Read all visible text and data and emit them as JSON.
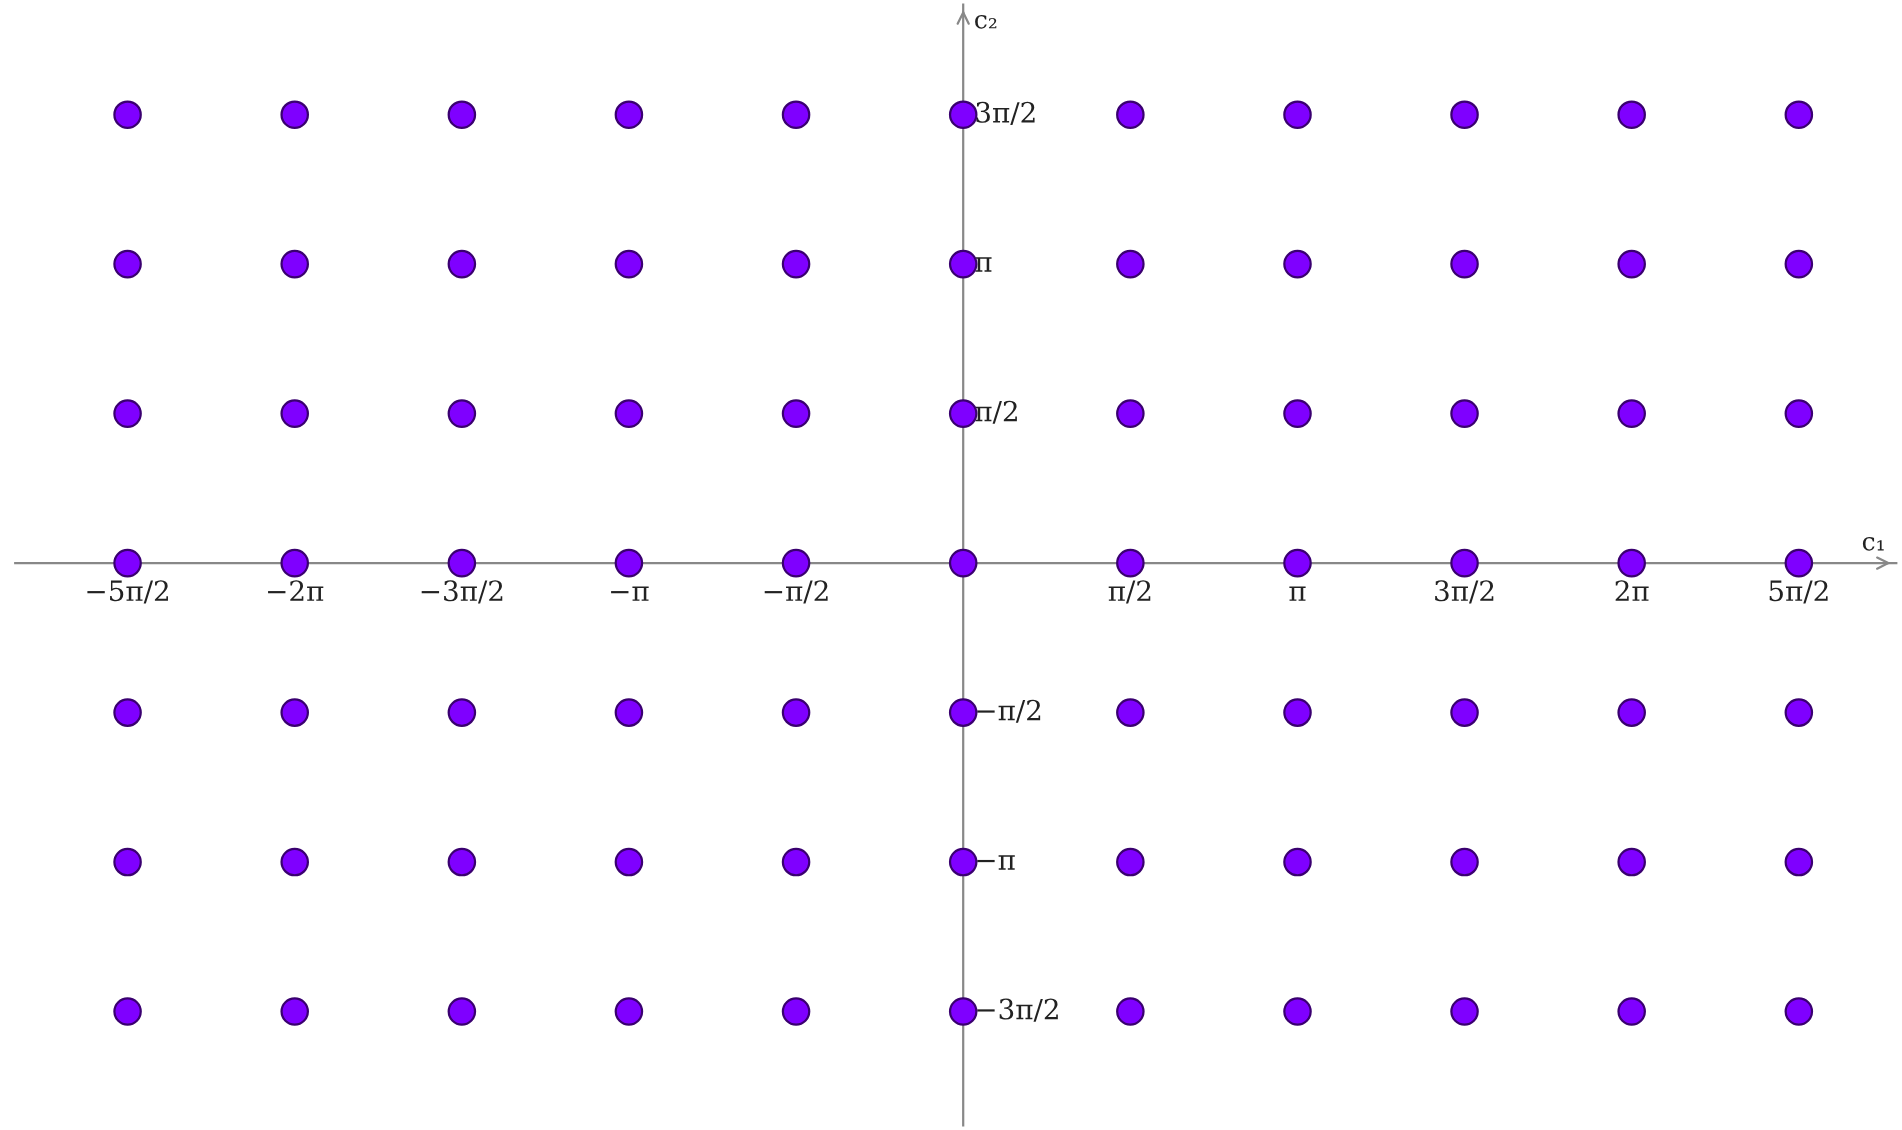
{
  "chart_data": {
    "type": "scatter",
    "xlabel": "c₁",
    "ylabel": "c₂",
    "xlim": [
      -8.91,
      8.77
    ],
    "ylim": [
      -5.91,
      5.87
    ],
    "xticks": [
      {
        "value": -7.854,
        "label": "−5π/2"
      },
      {
        "value": -6.283,
        "label": "−2π"
      },
      {
        "value": -4.712,
        "label": "−3π/2"
      },
      {
        "value": -3.142,
        "label": "−π"
      },
      {
        "value": -1.571,
        "label": "−π/2"
      },
      {
        "value": 1.571,
        "label": "π/2"
      },
      {
        "value": 3.142,
        "label": "π"
      },
      {
        "value": 4.712,
        "label": "3π/2"
      },
      {
        "value": 6.283,
        "label": "2π"
      },
      {
        "value": 7.854,
        "label": "5π/2"
      }
    ],
    "yticks": [
      {
        "value": -4.712,
        "label": "−3π/2"
      },
      {
        "value": -3.142,
        "label": "−π"
      },
      {
        "value": -1.571,
        "label": "−π/2"
      },
      {
        "value": 1.571,
        "label": "π/2"
      },
      {
        "value": 3.142,
        "label": "π"
      },
      {
        "value": 4.712,
        "label": "3π/2"
      }
    ],
    "marker": "circle",
    "grid": false,
    "series": [
      {
        "color": "#7f00ff",
        "x": [
          -7.854,
          -7.854,
          -7.854,
          -7.854,
          -7.854,
          -7.854,
          -7.854,
          -6.283,
          -6.283,
          -6.283,
          -6.283,
          -6.283,
          -6.283,
          -6.283,
          -4.712,
          -4.712,
          -4.712,
          -4.712,
          -4.712,
          -4.712,
          -4.712,
          -3.142,
          -3.142,
          -3.142,
          -3.142,
          -3.142,
          -3.142,
          -3.142,
          -1.571,
          -1.571,
          -1.571,
          -1.571,
          -1.571,
          -1.571,
          -1.571,
          0,
          0,
          0,
          0,
          0,
          0,
          0,
          1.571,
          1.571,
          1.571,
          1.571,
          1.571,
          1.571,
          1.571,
          3.142,
          3.142,
          3.142,
          3.142,
          3.142,
          3.142,
          3.142,
          4.712,
          4.712,
          4.712,
          4.712,
          4.712,
          4.712,
          4.712,
          6.283,
          6.283,
          6.283,
          6.283,
          6.283,
          6.283,
          6.283,
          7.854,
          7.854,
          7.854,
          7.854,
          7.854,
          7.854,
          7.854
        ],
        "values": [
          -4.712,
          -3.142,
          -1.571,
          0,
          1.571,
          3.142,
          4.712,
          -4.712,
          -3.142,
          -1.571,
          0,
          1.571,
          3.142,
          4.712,
          -4.712,
          -3.142,
          -1.571,
          0,
          1.571,
          3.142,
          4.712,
          -4.712,
          -3.142,
          -1.571,
          0,
          1.571,
          3.142,
          4.712,
          -4.712,
          -3.142,
          -1.571,
          0,
          1.571,
          3.142,
          4.712,
          -4.712,
          -3.142,
          -1.571,
          0,
          1.571,
          3.142,
          4.712,
          -4.712,
          -3.142,
          -1.571,
          0,
          1.571,
          3.142,
          4.712,
          -4.712,
          -3.142,
          -1.571,
          0,
          1.571,
          3.142,
          4.712,
          -4.712,
          -3.142,
          -1.571,
          0,
          1.571,
          3.142,
          4.712,
          -4.712,
          -3.142,
          -1.571,
          0,
          1.571,
          3.142,
          4.712,
          -4.712,
          -3.142,
          -1.571,
          0,
          1.571,
          3.142,
          4.712
        ]
      }
    ]
  }
}
